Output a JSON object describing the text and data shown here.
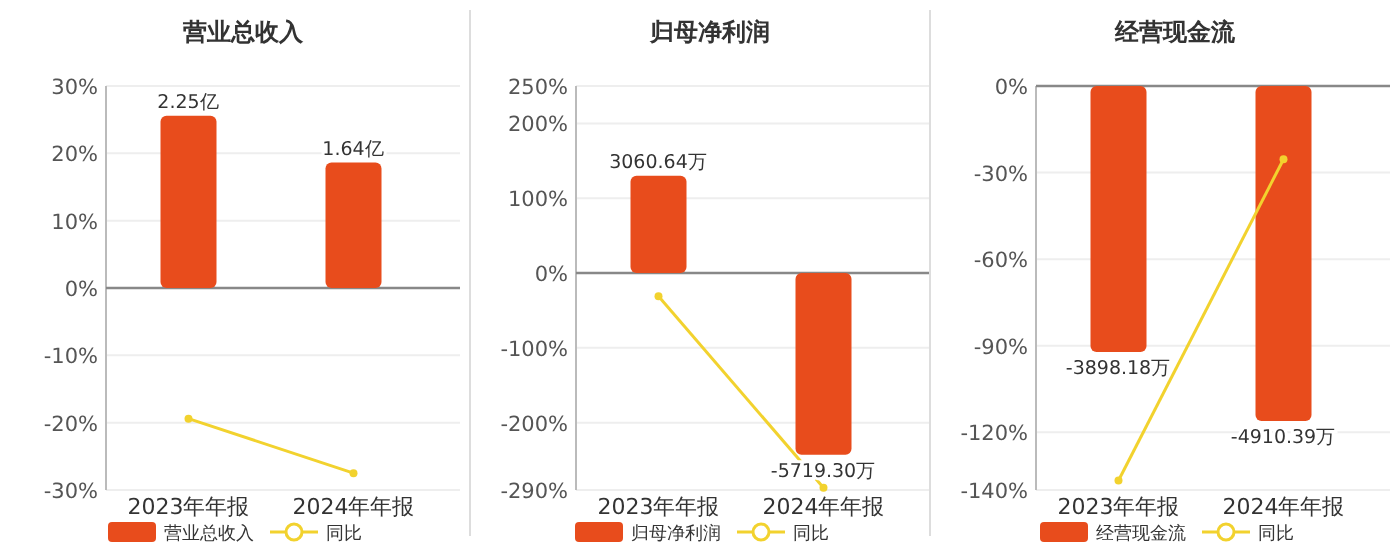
{
  "chart_data": [
    {
      "type": "bar",
      "title": "营业总收入",
      "categories": [
        "2023年年报",
        "2024年年报"
      ],
      "series": [
        {
          "name": "营业总收入",
          "axis": "y2",
          "color": "#e84c1c",
          "values": [
            2.25,
            1.64
          ],
          "value_labels": [
            "2.25亿",
            "1.64亿"
          ]
        },
        {
          "name": "同比",
          "type": "line",
          "color": "#f2d22e",
          "marker": "circle",
          "values": [
            -19.4,
            -27.5
          ]
        }
      ],
      "ylim": [
        -30,
        30
      ],
      "yticks": [
        {
          "value": 30,
          "label": "30%"
        },
        {
          "value": 20,
          "label": "20%"
        },
        {
          "value": 10,
          "label": "10%"
        },
        {
          "value": 0,
          "label": "0%"
        },
        {
          "value": -10,
          "label": "-10%"
        },
        {
          "value": -20,
          "label": "-20%"
        },
        {
          "value": -30,
          "label": "-30%"
        }
      ],
      "y2lim": [
        -2.64,
        2.64
      ],
      "grid": "y",
      "legend": "bottom"
    },
    {
      "type": "bar",
      "title": "归母净利润",
      "categories": [
        "2023年年报",
        "2024年年报"
      ],
      "series": [
        {
          "name": "归母净利润",
          "axis": "y2",
          "color": "#e84c1c",
          "values": [
            3060.64,
            -5719.3
          ],
          "value_labels": [
            "3060.64万",
            "-5719.30万"
          ]
        },
        {
          "name": "同比",
          "type": "line",
          "color": "#f2d22e",
          "marker": "circle",
          "values": [
            -31,
            -287
          ]
        }
      ],
      "ylim": [
        -290,
        250
      ],
      "yticks": [
        {
          "value": 250,
          "label": "250%"
        },
        {
          "value": 200,
          "label": "200%"
        },
        {
          "value": 100,
          "label": "100%"
        },
        {
          "value": 0,
          "label": "0%"
        },
        {
          "value": -100,
          "label": "-100%"
        },
        {
          "value": -200,
          "label": "-200%"
        },
        {
          "value": -290,
          "label": "-290%"
        }
      ],
      "y2lim": [
        -6827,
        5885
      ],
      "grid": "y",
      "legend": "bottom"
    },
    {
      "type": "bar",
      "title": "经营现金流",
      "categories": [
        "2023年年报",
        "2024年年报"
      ],
      "series": [
        {
          "name": "经营现金流",
          "axis": "y2",
          "color": "#e84c1c",
          "values": [
            -3898.18,
            -4910.39
          ],
          "value_labels": [
            "-3898.18万",
            "-4910.39万"
          ]
        },
        {
          "name": "同比",
          "type": "line",
          "color": "#f2d22e",
          "marker": "circle",
          "values": [
            -136.7,
            -25.4
          ]
        }
      ],
      "ylim": [
        -140,
        0
      ],
      "yticks": [
        {
          "value": 0,
          "label": "0%"
        },
        {
          "value": -30,
          "label": "-30%"
        },
        {
          "value": -60,
          "label": "-60%"
        },
        {
          "value": -90,
          "label": "-90%"
        },
        {
          "value": -120,
          "label": "-120%"
        },
        {
          "value": -140,
          "label": "-140%"
        }
      ],
      "y2lim": [
        -5922,
        0
      ],
      "grid": "y",
      "legend": "bottom"
    }
  ]
}
